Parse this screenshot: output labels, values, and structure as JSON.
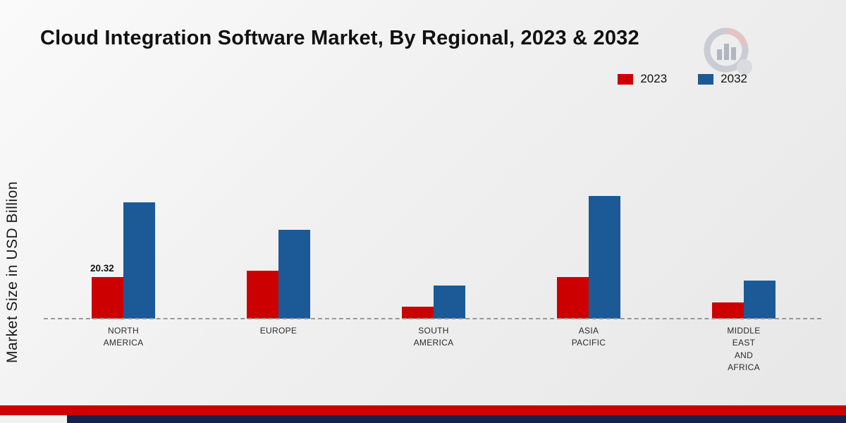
{
  "page": {
    "title": "Cloud Integration Software Market, By Regional, 2023 & 2032",
    "ylabel": "Market Size in USD Billion"
  },
  "legend": [
    {
      "label": "2023",
      "color": "#cc0000"
    },
    {
      "label": "2032",
      "color": "#1b5a97"
    }
  ],
  "chart_data": {
    "type": "bar",
    "title": "Cloud Integration Software Market, By Regional, 2023 & 2032",
    "xlabel": "",
    "ylabel": "Market Size in USD Billion",
    "categories": [
      "NORTH AMERICA",
      "EUROPE",
      "SOUTH AMERICA",
      "ASIA PACIFIC",
      "MIDDLE EAST AND AFRICA"
    ],
    "category_lines": [
      [
        "NORTH",
        "AMERICA"
      ],
      [
        "EUROPE"
      ],
      [
        "SOUTH",
        "AMERICA"
      ],
      [
        "ASIA",
        "PACIFIC"
      ],
      [
        "MIDDLE",
        "EAST",
        "AND",
        "AFRICA"
      ]
    ],
    "series": [
      {
        "name": "2023",
        "color": "#cc0000",
        "values": [
          20.32,
          23.5,
          6.0,
          20.5,
          8.0
        ],
        "value_labels": [
          "20.32",
          "",
          "",
          "",
          ""
        ]
      },
      {
        "name": "2032",
        "color": "#1b5a97",
        "values": [
          57.0,
          43.5,
          16.2,
          60.0,
          18.6
        ],
        "value_labels": [
          "",
          "",
          "",
          "",
          ""
        ]
      }
    ],
    "ylim": [
      0,
      65
    ],
    "grid": false,
    "legend_position": "top-right",
    "baseline_style": "dashed"
  },
  "footer": {
    "stripe_red_color": "#cc0001",
    "stripe_navy_color": "#16224d"
  }
}
